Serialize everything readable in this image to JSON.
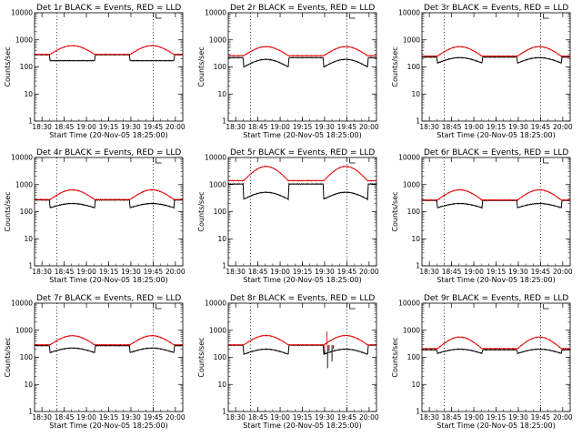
{
  "figure": {
    "background": "#ffffff",
    "events_color": "#000000",
    "lld_color": "#e00000"
  },
  "chart_data": [
    {
      "type": "line",
      "title": "Det 1r BLACK = Events, RED = LLD",
      "xlabel": "Start Time (20-Nov-05 18:25:00)",
      "ylabel": "Counts/sec",
      "yscale": "log",
      "ylim": [
        1,
        10000
      ],
      "xlim_minutes": [
        0,
        100
      ],
      "x_ticks": [
        "18:30",
        "18:45",
        "19:00",
        "19:15",
        "19:30",
        "19:45",
        "20:00"
      ],
      "y_ticks": [
        "1",
        "10",
        "100",
        "1000",
        "10000"
      ],
      "vlines_minutes": [
        15,
        80
      ],
      "series": [
        {
          "name": "Events",
          "color": "#000000",
          "baseline": 280,
          "peak": 170,
          "dropout": 170
        },
        {
          "name": "LLD",
          "color": "#e00000",
          "baseline": 290,
          "peak": 610
        }
      ],
      "glitch": false
    },
    {
      "type": "line",
      "title": "Det 2r BLACK = Events, RED = LLD",
      "xlabel": "Start Time (20-Nov-05 18:25:00)",
      "ylabel": "Counts/sec",
      "yscale": "log",
      "ylim": [
        1,
        10000
      ],
      "xlim_minutes": [
        0,
        100
      ],
      "x_ticks": [
        "18:30",
        "18:45",
        "19:00",
        "19:15",
        "19:30",
        "19:45",
        "20:00"
      ],
      "y_ticks": [
        "1",
        "10",
        "100",
        "1000",
        "10000"
      ],
      "vlines_minutes": [
        15,
        80
      ],
      "series": [
        {
          "name": "Events",
          "color": "#000000",
          "baseline": 220,
          "peak": 190,
          "dropout": 100
        },
        {
          "name": "LLD",
          "color": "#e00000",
          "baseline": 260,
          "peak": 560
        }
      ],
      "glitch": false
    },
    {
      "type": "line",
      "title": "Det 3r BLACK = Events, RED = LLD",
      "xlabel": "Start Time (20-Nov-05 18:25:00)",
      "ylabel": "Counts/sec",
      "yscale": "log",
      "ylim": [
        1,
        10000
      ],
      "xlim_minutes": [
        0,
        100
      ],
      "x_ticks": [
        "18:30",
        "18:45",
        "19:00",
        "19:15",
        "19:30",
        "19:45",
        "20:00"
      ],
      "y_ticks": [
        "1",
        "10",
        "100",
        "1000",
        "10000"
      ],
      "vlines_minutes": [
        15,
        80
      ],
      "series": [
        {
          "name": "Events",
          "color": "#000000",
          "baseline": 230,
          "peak": 220,
          "dropout": 140
        },
        {
          "name": "LLD",
          "color": "#e00000",
          "baseline": 250,
          "peak": 560
        }
      ],
      "glitch": false
    },
    {
      "type": "line",
      "title": "Det 4r BLACK = Events, RED = LLD",
      "xlabel": "Start Time (20-Nov-05 18:25:00)",
      "ylabel": "Counts/sec",
      "yscale": "log",
      "ylim": [
        1,
        10000
      ],
      "xlim_minutes": [
        0,
        100
      ],
      "x_ticks": [
        "18:30",
        "18:45",
        "19:00",
        "19:15",
        "19:30",
        "19:45",
        "20:00"
      ],
      "y_ticks": [
        "1",
        "10",
        "100",
        "1000",
        "10000"
      ],
      "vlines_minutes": [
        15,
        80
      ],
      "series": [
        {
          "name": "Events",
          "color": "#000000",
          "baseline": 270,
          "peak": 200,
          "dropout": 140
        },
        {
          "name": "LLD",
          "color": "#e00000",
          "baseline": 280,
          "peak": 640
        }
      ],
      "glitch": false
    },
    {
      "type": "line",
      "title": "Det 5r BLACK = Events, RED = LLD",
      "xlabel": "Start Time (20-Nov-05 18:25:00)",
      "ylabel": "Counts/sec",
      "yscale": "log",
      "ylim": [
        1,
        10000
      ],
      "xlim_minutes": [
        0,
        100
      ],
      "x_ticks": [
        "18:30",
        "18:45",
        "19:00",
        "19:15",
        "19:30",
        "19:45",
        "20:00"
      ],
      "y_ticks": [
        "1",
        "10",
        "100",
        "1000",
        "10000"
      ],
      "vlines_minutes": [
        15,
        80
      ],
      "series": [
        {
          "name": "Events",
          "color": "#000000",
          "baseline": 1050,
          "peak": 520,
          "dropout": 290
        },
        {
          "name": "LLD",
          "color": "#e00000",
          "baseline": 1400,
          "peak": 4700
        }
      ],
      "glitch": false
    },
    {
      "type": "line",
      "title": "Det 6r BLACK = Events, RED = LLD",
      "xlabel": "Start Time (20-Nov-05 18:25:00)",
      "ylabel": "Counts/sec",
      "yscale": "log",
      "ylim": [
        1,
        10000
      ],
      "xlim_minutes": [
        0,
        100
      ],
      "x_ticks": [
        "18:30",
        "18:45",
        "19:00",
        "19:15",
        "19:30",
        "19:45",
        "20:00"
      ],
      "y_ticks": [
        "1",
        "10",
        "100",
        "1000",
        "10000"
      ],
      "vlines_minutes": [
        15,
        80
      ],
      "series": [
        {
          "name": "Events",
          "color": "#000000",
          "baseline": 260,
          "peak": 200,
          "dropout": 140
        },
        {
          "name": "LLD",
          "color": "#e00000",
          "baseline": 270,
          "peak": 640
        }
      ],
      "glitch": false
    },
    {
      "type": "line",
      "title": "Det 7r BLACK = Events, RED = LLD",
      "xlabel": "Start Time (20-Nov-05 18:25:00)",
      "ylabel": "Counts/sec",
      "yscale": "log",
      "ylim": [
        1,
        10000
      ],
      "xlim_minutes": [
        0,
        100
      ],
      "x_ticks": [
        "18:30",
        "18:45",
        "19:00",
        "19:15",
        "19:30",
        "19:45",
        "20:00"
      ],
      "y_ticks": [
        "1",
        "10",
        "100",
        "1000",
        "10000"
      ],
      "vlines_minutes": [
        15,
        80
      ],
      "series": [
        {
          "name": "Events",
          "color": "#000000",
          "baseline": 270,
          "peak": 220,
          "dropout": 150
        },
        {
          "name": "LLD",
          "color": "#e00000",
          "baseline": 290,
          "peak": 630
        }
      ],
      "glitch": false
    },
    {
      "type": "line",
      "title": "Det 8r BLACK = Events, RED = LLD",
      "xlabel": "Start Time (20-Nov-05 18:25:00)",
      "ylabel": "Counts/sec",
      "yscale": "log",
      "ylim": [
        1,
        10000
      ],
      "xlim_minutes": [
        0,
        100
      ],
      "x_ticks": [
        "18:30",
        "18:45",
        "19:00",
        "19:15",
        "19:30",
        "19:45",
        "20:00"
      ],
      "y_ticks": [
        "1",
        "10",
        "100",
        "1000",
        "10000"
      ],
      "vlines_minutes": [
        15,
        80
      ],
      "series": [
        {
          "name": "Events",
          "color": "#000000",
          "baseline": 280,
          "peak": 200,
          "dropout": 130
        },
        {
          "name": "LLD",
          "color": "#e00000",
          "baseline": 290,
          "peak": 640
        }
      ],
      "glitch": true
    },
    {
      "type": "line",
      "title": "Det 9r BLACK = Events, RED = LLD",
      "xlabel": "Start Time (20-Nov-05 18:25:00)",
      "ylabel": "Counts/sec",
      "yscale": "log",
      "ylim": [
        1,
        10000
      ],
      "xlim_minutes": [
        0,
        100
      ],
      "x_ticks": [
        "18:30",
        "18:45",
        "19:00",
        "19:15",
        "19:30",
        "19:45",
        "20:00"
      ],
      "y_ticks": [
        "1",
        "10",
        "100",
        "1000",
        "10000"
      ],
      "vlines_minutes": [
        15,
        80
      ],
      "series": [
        {
          "name": "Events",
          "color": "#000000",
          "baseline": 190,
          "peak": 200,
          "dropout": 140
        },
        {
          "name": "LLD",
          "color": "#e00000",
          "baseline": 210,
          "peak": 560
        }
      ],
      "glitch": false
    }
  ]
}
